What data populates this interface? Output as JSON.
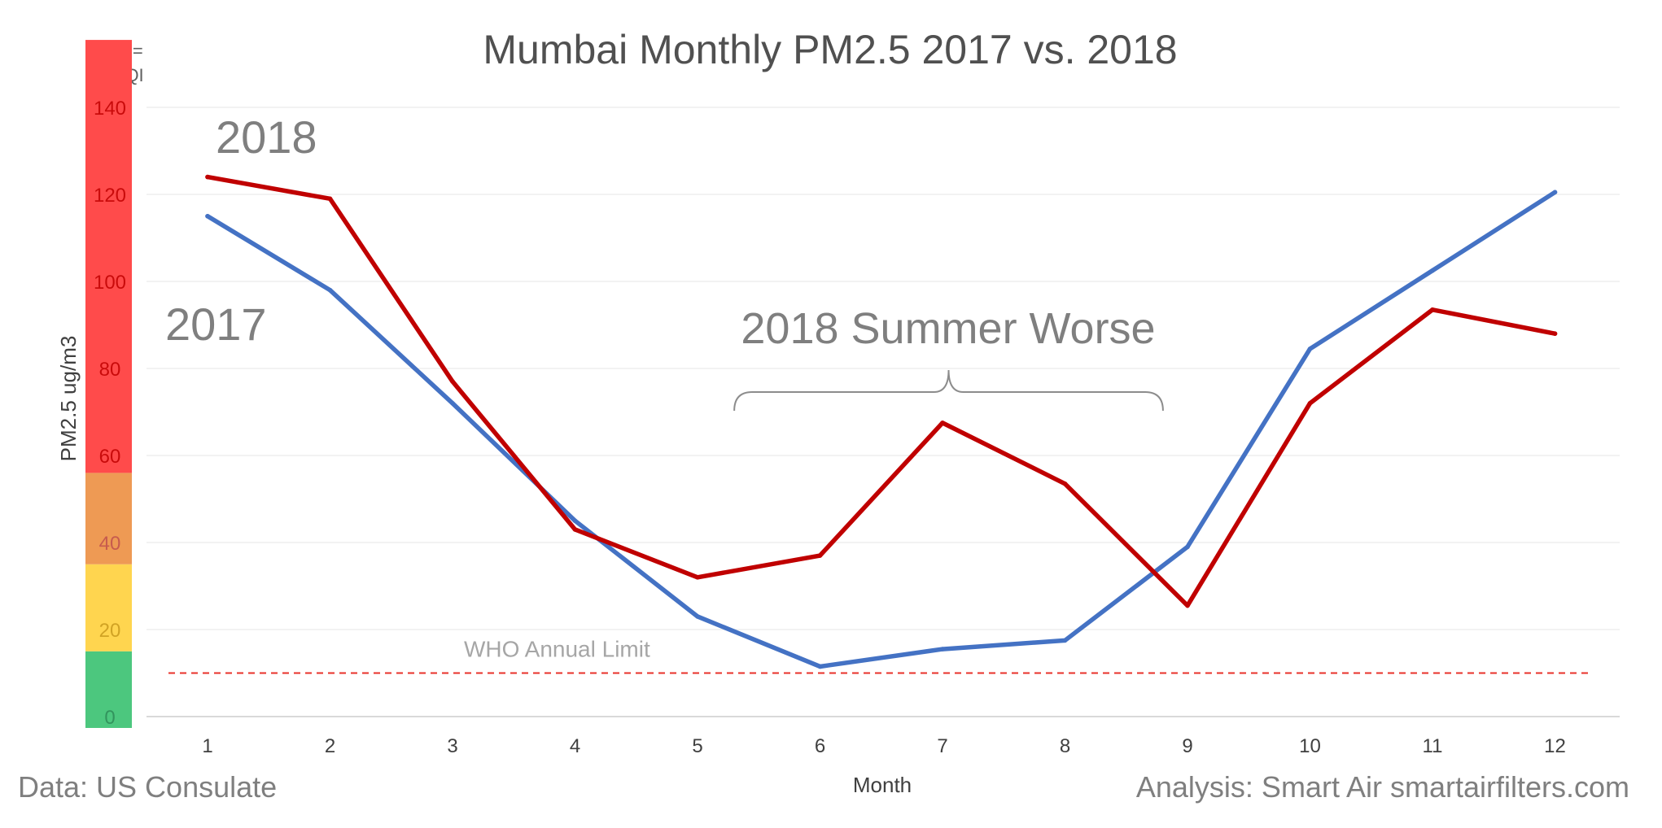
{
  "chart_data": {
    "type": "line",
    "title": "Mumbai Monthly PM2.5 2017 vs. 2018",
    "xlabel": "Month",
    "ylabel": "PM2.5 ug/m3",
    "x": [
      1,
      2,
      3,
      4,
      5,
      6,
      7,
      8,
      9,
      10,
      11,
      12
    ],
    "ylim": [
      0,
      150
    ],
    "yticks": [
      0,
      20,
      40,
      60,
      80,
      100,
      120,
      140
    ],
    "grid": true,
    "series": [
      {
        "name": "2017",
        "color": "#4472C4",
        "values": [
          115,
          98,
          72,
          45,
          23,
          11.5,
          15.5,
          17.5,
          39,
          84.5,
          102.5,
          120.5
        ]
      },
      {
        "name": "2018",
        "color": "#C00000",
        "values": [
          124,
          119,
          77,
          43,
          32,
          37,
          67.5,
          53.5,
          25.5,
          72,
          93.5,
          88
        ]
      }
    ],
    "series_labels": [
      "2018",
      "2017"
    ],
    "reference_line": {
      "label": "WHO Annual Limit",
      "value": 10,
      "color": "#E8302A"
    },
    "annotation": {
      "text": "2018 Summer Worse",
      "x_from": 5.3,
      "x_to": 8.8
    },
    "aqi_bar": {
      "title_line1": "Color =",
      "title_line2": "US AQI",
      "bands": [
        {
          "from": 0,
          "to": 15,
          "color": "#4CC77E"
        },
        {
          "from": 15,
          "to": 35,
          "color": "#FFD54F"
        },
        {
          "from": 35,
          "to": 56,
          "color": "#EE9A54"
        },
        {
          "from": 56,
          "to": 150,
          "color": "#FF4B4B"
        }
      ]
    }
  },
  "footer": {
    "source": "Data: US Consulate",
    "credit": "Analysis: Smart Air smartairfilters.com"
  }
}
